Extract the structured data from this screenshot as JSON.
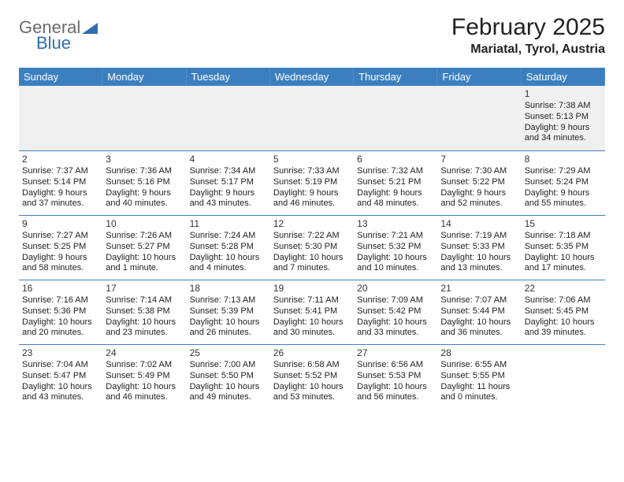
{
  "logo": {
    "word1": "General",
    "word2": "Blue"
  },
  "title": "February 2025",
  "location": "Mariatal, Tyrol, Austria",
  "colors": {
    "header_bg": "#3c7fc0",
    "header_text": "#ffffff",
    "cell_border": "#3c7fc0",
    "blank_bg": "#f0f0f0",
    "logo_gray": "#6b6b6b",
    "logo_blue": "#2f6fb0"
  },
  "weekdays": [
    "Sunday",
    "Monday",
    "Tuesday",
    "Wednesday",
    "Thursday",
    "Friday",
    "Saturday"
  ],
  "layout": {
    "columns": 7,
    "rows": 5,
    "lead_blank_cells": 6
  },
  "days": [
    {
      "n": "1",
      "sunrise": "Sunrise: 7:38 AM",
      "sunset": "Sunset: 5:13 PM",
      "day1": "Daylight: 9 hours",
      "day2": "and 34 minutes."
    },
    {
      "n": "2",
      "sunrise": "Sunrise: 7:37 AM",
      "sunset": "Sunset: 5:14 PM",
      "day1": "Daylight: 9 hours",
      "day2": "and 37 minutes."
    },
    {
      "n": "3",
      "sunrise": "Sunrise: 7:36 AM",
      "sunset": "Sunset: 5:16 PM",
      "day1": "Daylight: 9 hours",
      "day2": "and 40 minutes."
    },
    {
      "n": "4",
      "sunrise": "Sunrise: 7:34 AM",
      "sunset": "Sunset: 5:17 PM",
      "day1": "Daylight: 9 hours",
      "day2": "and 43 minutes."
    },
    {
      "n": "5",
      "sunrise": "Sunrise: 7:33 AM",
      "sunset": "Sunset: 5:19 PM",
      "day1": "Daylight: 9 hours",
      "day2": "and 46 minutes."
    },
    {
      "n": "6",
      "sunrise": "Sunrise: 7:32 AM",
      "sunset": "Sunset: 5:21 PM",
      "day1": "Daylight: 9 hours",
      "day2": "and 48 minutes."
    },
    {
      "n": "7",
      "sunrise": "Sunrise: 7:30 AM",
      "sunset": "Sunset: 5:22 PM",
      "day1": "Daylight: 9 hours",
      "day2": "and 52 minutes."
    },
    {
      "n": "8",
      "sunrise": "Sunrise: 7:29 AM",
      "sunset": "Sunset: 5:24 PM",
      "day1": "Daylight: 9 hours",
      "day2": "and 55 minutes."
    },
    {
      "n": "9",
      "sunrise": "Sunrise: 7:27 AM",
      "sunset": "Sunset: 5:25 PM",
      "day1": "Daylight: 9 hours",
      "day2": "and 58 minutes."
    },
    {
      "n": "10",
      "sunrise": "Sunrise: 7:26 AM",
      "sunset": "Sunset: 5:27 PM",
      "day1": "Daylight: 10 hours",
      "day2": "and 1 minute."
    },
    {
      "n": "11",
      "sunrise": "Sunrise: 7:24 AM",
      "sunset": "Sunset: 5:28 PM",
      "day1": "Daylight: 10 hours",
      "day2": "and 4 minutes."
    },
    {
      "n": "12",
      "sunrise": "Sunrise: 7:22 AM",
      "sunset": "Sunset: 5:30 PM",
      "day1": "Daylight: 10 hours",
      "day2": "and 7 minutes."
    },
    {
      "n": "13",
      "sunrise": "Sunrise: 7:21 AM",
      "sunset": "Sunset: 5:32 PM",
      "day1": "Daylight: 10 hours",
      "day2": "and 10 minutes."
    },
    {
      "n": "14",
      "sunrise": "Sunrise: 7:19 AM",
      "sunset": "Sunset: 5:33 PM",
      "day1": "Daylight: 10 hours",
      "day2": "and 13 minutes."
    },
    {
      "n": "15",
      "sunrise": "Sunrise: 7:18 AM",
      "sunset": "Sunset: 5:35 PM",
      "day1": "Daylight: 10 hours",
      "day2": "and 17 minutes."
    },
    {
      "n": "16",
      "sunrise": "Sunrise: 7:16 AM",
      "sunset": "Sunset: 5:36 PM",
      "day1": "Daylight: 10 hours",
      "day2": "and 20 minutes."
    },
    {
      "n": "17",
      "sunrise": "Sunrise: 7:14 AM",
      "sunset": "Sunset: 5:38 PM",
      "day1": "Daylight: 10 hours",
      "day2": "and 23 minutes."
    },
    {
      "n": "18",
      "sunrise": "Sunrise: 7:13 AM",
      "sunset": "Sunset: 5:39 PM",
      "day1": "Daylight: 10 hours",
      "day2": "and 26 minutes."
    },
    {
      "n": "19",
      "sunrise": "Sunrise: 7:11 AM",
      "sunset": "Sunset: 5:41 PM",
      "day1": "Daylight: 10 hours",
      "day2": "and 30 minutes."
    },
    {
      "n": "20",
      "sunrise": "Sunrise: 7:09 AM",
      "sunset": "Sunset: 5:42 PM",
      "day1": "Daylight: 10 hours",
      "day2": "and 33 minutes."
    },
    {
      "n": "21",
      "sunrise": "Sunrise: 7:07 AM",
      "sunset": "Sunset: 5:44 PM",
      "day1": "Daylight: 10 hours",
      "day2": "and 36 minutes."
    },
    {
      "n": "22",
      "sunrise": "Sunrise: 7:06 AM",
      "sunset": "Sunset: 5:45 PM",
      "day1": "Daylight: 10 hours",
      "day2": "and 39 minutes."
    },
    {
      "n": "23",
      "sunrise": "Sunrise: 7:04 AM",
      "sunset": "Sunset: 5:47 PM",
      "day1": "Daylight: 10 hours",
      "day2": "and 43 minutes."
    },
    {
      "n": "24",
      "sunrise": "Sunrise: 7:02 AM",
      "sunset": "Sunset: 5:49 PM",
      "day1": "Daylight: 10 hours",
      "day2": "and 46 minutes."
    },
    {
      "n": "25",
      "sunrise": "Sunrise: 7:00 AM",
      "sunset": "Sunset: 5:50 PM",
      "day1": "Daylight: 10 hours",
      "day2": "and 49 minutes."
    },
    {
      "n": "26",
      "sunrise": "Sunrise: 6:58 AM",
      "sunset": "Sunset: 5:52 PM",
      "day1": "Daylight: 10 hours",
      "day2": "and 53 minutes."
    },
    {
      "n": "27",
      "sunrise": "Sunrise: 6:56 AM",
      "sunset": "Sunset: 5:53 PM",
      "day1": "Daylight: 10 hours",
      "day2": "and 56 minutes."
    },
    {
      "n": "28",
      "sunrise": "Sunrise: 6:55 AM",
      "sunset": "Sunset: 5:55 PM",
      "day1": "Daylight: 11 hours",
      "day2": "and 0 minutes."
    }
  ]
}
